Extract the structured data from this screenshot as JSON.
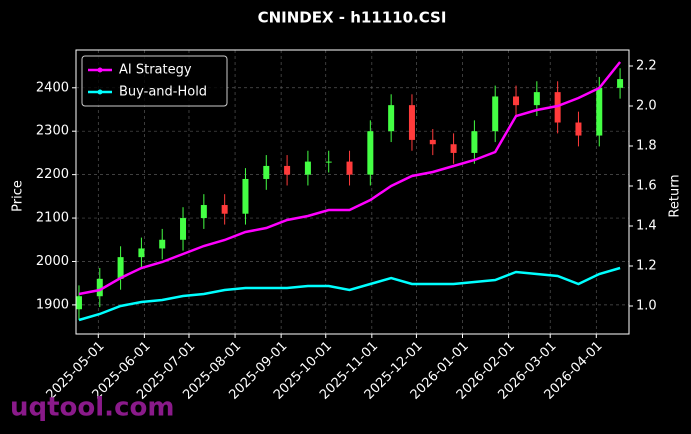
{
  "chart_data": {
    "type": "candlestick",
    "title": "CNINDEX - h11110.CSI",
    "y_label": "Price",
    "y2_label": "Return",
    "watermark": "uqtool.com",
    "x": [
      "2025-04-18",
      "2025-05-02",
      "2025-05-16",
      "2025-05-30",
      "2025-06-13",
      "2025-06-27",
      "2025-07-11",
      "2025-07-25",
      "2025-08-08",
      "2025-08-22",
      "2025-09-05",
      "2025-09-19",
      "2025-10-03",
      "2025-10-17",
      "2025-10-31",
      "2025-11-14",
      "2025-11-28",
      "2025-12-12",
      "2025-12-26",
      "2026-01-09",
      "2026-01-23",
      "2026-02-06",
      "2026-02-20",
      "2026-03-06",
      "2026-03-20",
      "2026-04-03",
      "2026-04-17"
    ],
    "open": [
      1890,
      1920,
      1960,
      2010,
      2030,
      2050,
      2100,
      2130,
      2110,
      2190,
      2220,
      2200,
      2230,
      2230,
      2200,
      2300,
      2360,
      2280,
      2270,
      2250,
      2300,
      2380,
      2360,
      2390,
      2320,
      2290,
      2400
    ],
    "high": [
      1945,
      1985,
      2035,
      2055,
      2075,
      2125,
      2155,
      2155,
      2215,
      2245,
      2245,
      2255,
      2255,
      2255,
      2325,
      2385,
      2385,
      2305,
      2295,
      2325,
      2405,
      2405,
      2415,
      2415,
      2345,
      2425,
      2445
    ],
    "low": [
      1865,
      1895,
      1935,
      1985,
      2005,
      2025,
      2075,
      2085,
      2085,
      2165,
      2175,
      2175,
      2205,
      2175,
      2175,
      2275,
      2255,
      2245,
      2225,
      2225,
      2275,
      2335,
      2335,
      2295,
      2265,
      2265,
      2375
    ],
    "close": [
      1920,
      1960,
      2010,
      2030,
      2050,
      2100,
      2130,
      2110,
      2190,
      2220,
      2200,
      2230,
      2230,
      2200,
      2300,
      2360,
      2280,
      2270,
      2250,
      2300,
      2380,
      2360,
      2390,
      2320,
      2290,
      2400,
      2420
    ],
    "up_color": "#44ff44",
    "down_color": "#ff3b3b",
    "series": [
      {
        "name": "AI Strategy",
        "color": "#ff00ff",
        "axis": "y2",
        "values": [
          1.06,
          1.08,
          1.14,
          1.19,
          1.22,
          1.26,
          1.3,
          1.33,
          1.37,
          1.39,
          1.43,
          1.45,
          1.48,
          1.48,
          1.53,
          1.6,
          1.65,
          1.67,
          1.7,
          1.73,
          1.77,
          1.95,
          1.98,
          2.0,
          2.04,
          2.09,
          2.22
        ]
      },
      {
        "name": "Buy-and-Hold",
        "color": "#00ffff",
        "axis": "y2",
        "values": [
          0.93,
          0.96,
          1.0,
          1.02,
          1.03,
          1.05,
          1.06,
          1.08,
          1.09,
          1.09,
          1.09,
          1.1,
          1.1,
          1.08,
          1.11,
          1.14,
          1.11,
          1.11,
          1.11,
          1.12,
          1.13,
          1.17,
          1.16,
          1.15,
          1.11,
          1.16,
          1.19
        ]
      }
    ],
    "xlim": [
      "2025-04-16",
      "2026-04-23"
    ],
    "xticks": [
      "2025-05-01",
      "2025-06-01",
      "2025-07-01",
      "2025-08-01",
      "2025-09-01",
      "2025-10-01",
      "2025-11-01",
      "2025-12-01",
      "2026-01-01",
      "2026-02-01",
      "2026-03-01",
      "2026-04-01"
    ],
    "ylim": [
      1833,
      2487
    ],
    "yticks": [
      1900,
      2000,
      2100,
      2200,
      2300,
      2400
    ],
    "y2lim": [
      0.86,
      2.28
    ],
    "y2ticks": [
      {
        "value": 1.0,
        "label": "1.0"
      },
      1.2,
      1.4,
      1.6,
      1.8,
      {
        "value": 2.0,
        "label": "2.0"
      },
      2.2
    ],
    "grid": true,
    "legend": "upper-left"
  }
}
